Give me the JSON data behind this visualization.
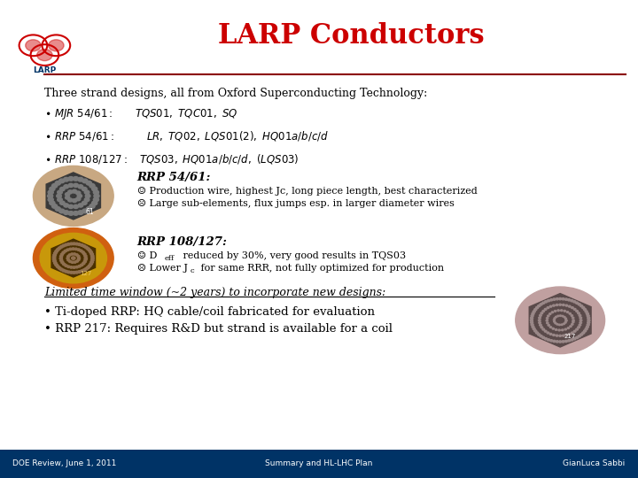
{
  "title": "LARP Conductors",
  "title_color": "#CC0000",
  "title_fontsize": 22,
  "bg_color": "#FFFFFF",
  "header_line_color": "#8B0000",
  "subtitle": "Three strand designs, all from Oxford Superconducting Technology:",
  "rrp54_title": "RRP 54/61:",
  "rrp54_good": "☺ Production wire, highest Jc, long piece length, best characterized",
  "rrp54_bad": "☹ Large sub-elements, flux jumps esp. in larger diameter wires",
  "rrp108_title": "RRP 108/127:",
  "rrp108_good_pre": "☺ D",
  "rrp108_good_sub": "eff",
  "rrp108_good_post": " reduced by 30%, very good results in TQS03",
  "rrp108_bad_pre": "☹ Lower J",
  "rrp108_bad_sub": "c",
  "rrp108_bad_post": " for same RRR, not fully optimized for production",
  "limited_text": "Limited time window (~2 years) to incorporate new designs:",
  "bullet_bottom_1": "• Ti-doped RRP: HQ cable/coil fabricated for evaluation",
  "bullet_bottom_2": "• RRP 217: Requires R&D but strand is available for a coil",
  "footer_bg": "#003366",
  "footer_left": "DOE Review, June 1, 2011",
  "footer_center": "Summary and HL-LHC Plan",
  "footer_right": "GianLuca Sabbi",
  "larp_text_color": "#003366"
}
